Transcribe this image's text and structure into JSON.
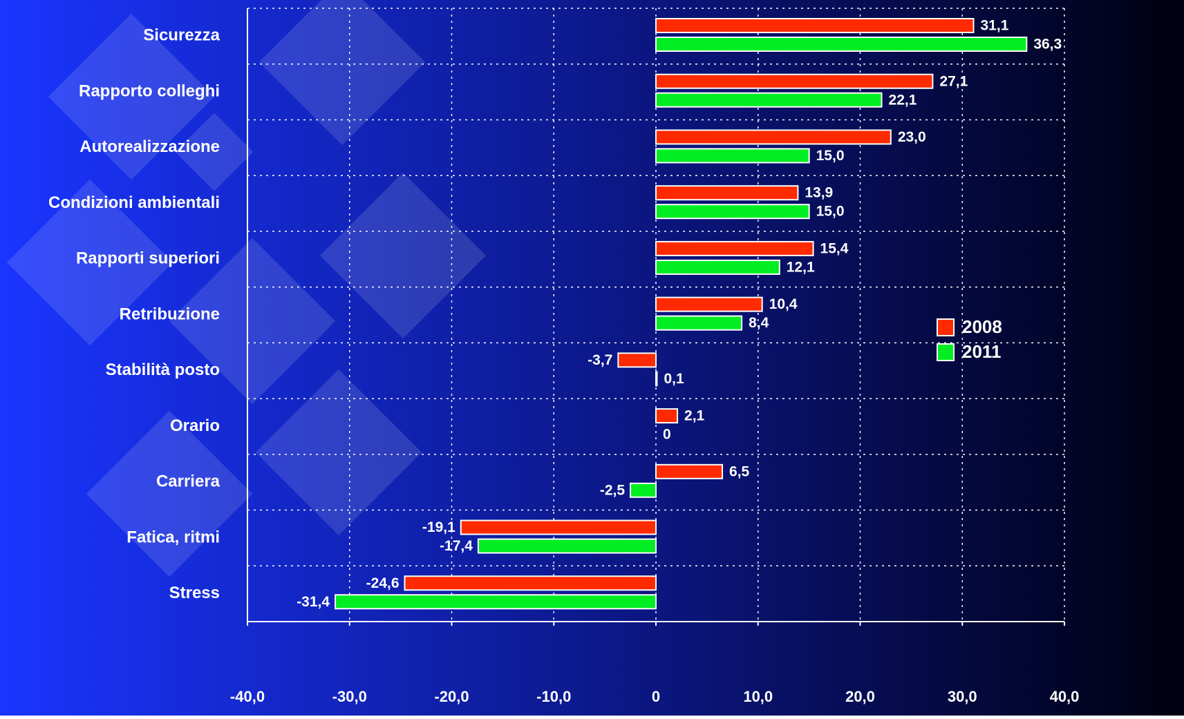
{
  "chart_data": {
    "type": "hbar",
    "categories": [
      "Sicurezza",
      "Rapporto colleghi",
      "Autorealizzazione",
      "Condizioni ambientali",
      "Rapporti superiori",
      "Retribuzione",
      "Stabilità posto",
      "Orario",
      "Carriera",
      "Fatica, ritmi",
      "Stress"
    ],
    "series": [
      {
        "name": "2008",
        "color": "#ff2a00",
        "values": [
          31.1,
          27.1,
          23.0,
          13.9,
          15.4,
          10.4,
          -3.7,
          2.1,
          6.5,
          -19.1,
          -24.6
        ],
        "value_labels": [
          "31,1",
          "27,1",
          "23,0",
          "13,9",
          "15,4",
          "10,4",
          "-3,7",
          "2,1",
          "6,5",
          "-19,1",
          "-24,6"
        ]
      },
      {
        "name": "2011",
        "color": "#00ee22",
        "values": [
          36.3,
          22.1,
          15.0,
          15.0,
          12.1,
          8.4,
          0.1,
          0,
          -2.5,
          -17.4,
          -31.4
        ],
        "value_labels": [
          "36,3",
          "22,1",
          "15,0",
          "15,0",
          "12,1",
          "8,4",
          "0,1",
          "0",
          "-2,5",
          "-17,4",
          "-31,4"
        ]
      }
    ],
    "xlim": [
      -40,
      40
    ],
    "xticks": [
      {
        "value": -40,
        "label": "-40,0"
      },
      {
        "value": -30,
        "label": "-30,0"
      },
      {
        "value": -20,
        "label": "-20,0"
      },
      {
        "value": -10,
        "label": "-10,0"
      },
      0,
      {
        "value": 10,
        "label": "10,0"
      },
      {
        "value": 20,
        "label": "20,0"
      },
      {
        "value": 30,
        "label": "30,0"
      },
      {
        "value": 40,
        "label": "40,0"
      }
    ],
    "grid": true,
    "legend": "right"
  }
}
